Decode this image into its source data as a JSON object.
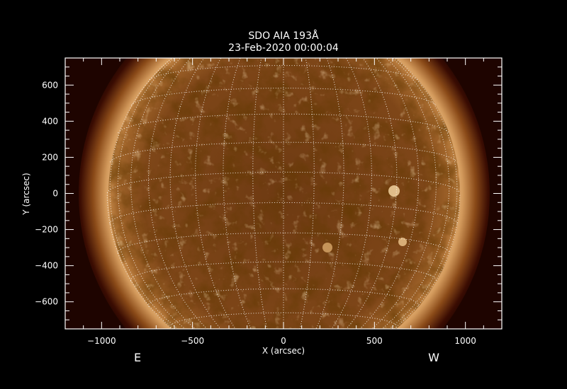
{
  "chart_data": {
    "type": "heatmap",
    "title": "SDO AIA 193Å",
    "subtitle": "23-Feb-2020 00:00:04",
    "xlabel": "X (arcsec)",
    "ylabel": "Y (arcsec)",
    "xlim": [
      -1200,
      1200
    ],
    "ylim": [
      -750,
      750
    ],
    "x_ticks": [
      -1000,
      -500,
      0,
      500,
      1000
    ],
    "y_ticks": [
      -600,
      -400,
      -200,
      0,
      200,
      400,
      600
    ],
    "x_minor_step": 100,
    "y_minor_step": 50,
    "solar_radius_arcsec": 969,
    "heliographic_grid_spacing_deg": 10,
    "grid": true,
    "colormap": "sdoaia193",
    "east_label": "E",
    "west_label": "W",
    "colors": {
      "background": "#000000",
      "sky": "#1e0400",
      "disk": "#7a4416",
      "corona": "#d9a46a",
      "grid": "#ffffff"
    }
  }
}
